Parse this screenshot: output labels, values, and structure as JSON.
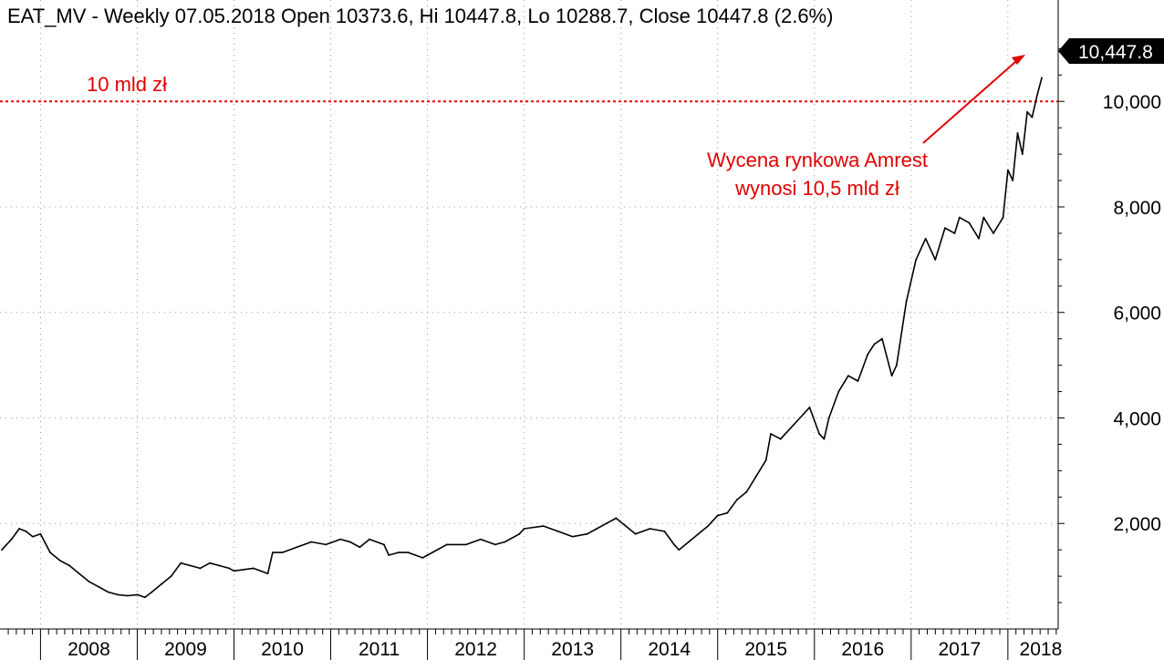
{
  "chart_data": {
    "type": "line",
    "title": "EAT_MV - Weekly 07.05.2018 Open 10373.6, Hi 10447.8, Lo 10288.7, Close 10447.8 (2.6%)",
    "xlabel": "",
    "ylabel": "",
    "x_tick_labels": [
      "2008",
      "2009",
      "2010",
      "2011",
      "2012",
      "2013",
      "2014",
      "2015",
      "2016",
      "2017",
      "2018"
    ],
    "y_tick_labels": [
      "2,000",
      "4,000",
      "6,000",
      "8,000",
      "10,000"
    ],
    "y_ticks": [
      2000,
      4000,
      6000,
      8000,
      10000
    ],
    "ylim": [
      0,
      11300
    ],
    "xlim": [
      2007.6,
      2018.52
    ],
    "grid": true,
    "last_value_label": "10,447.8",
    "reference_line": {
      "value": 10000,
      "label": "10 mld zł",
      "color": "#e00000"
    },
    "annotation": {
      "lines": [
        "Wycena rynkowa Amrest",
        "wynosi 10,5 mld zł"
      ],
      "color": "#e00000"
    },
    "series": [
      {
        "x": [
          2007.6,
          2007.7,
          2007.78,
          2007.85,
          2007.92,
          2008.0,
          2008.1,
          2008.2,
          2008.3,
          2008.4,
          2008.5,
          2008.6,
          2008.7,
          2008.8,
          2008.9,
          2009.0,
          2009.08,
          2009.15,
          2009.25,
          2009.35,
          2009.45,
          2009.55,
          2009.65,
          2009.75,
          2009.85,
          2009.95,
          2010.0,
          2010.2,
          2010.35,
          2010.4,
          2010.5,
          2010.65,
          2010.8,
          2010.95,
          2011.1,
          2011.2,
          2011.3,
          2011.4,
          2011.55,
          2011.6,
          2011.7,
          2011.8,
          2011.95,
          2012.0,
          2012.2,
          2012.4,
          2012.55,
          2012.7,
          2012.8,
          2012.95,
          2013.0,
          2013.2,
          2013.35,
          2013.5,
          2013.65,
          2013.75,
          2013.85,
          2013.95,
          2014.05,
          2014.15,
          2014.3,
          2014.45,
          2014.55,
          2014.6,
          2014.7,
          2014.8,
          2014.9,
          2015.0,
          2015.1,
          2015.2,
          2015.3,
          2015.4,
          2015.5,
          2015.55,
          2015.65,
          2015.75,
          2015.85,
          2015.95,
          2016.05,
          2016.1,
          2016.15,
          2016.25,
          2016.35,
          2016.45,
          2016.55,
          2016.62,
          2016.7,
          2016.8,
          2016.85,
          2016.95,
          2017.05,
          2017.15,
          2017.25,
          2017.35,
          2017.45,
          2017.5,
          2017.6,
          2017.7,
          2017.75,
          2017.85,
          2017.95,
          2018.0,
          2018.05,
          2018.1,
          2018.15,
          2018.2,
          2018.25,
          2018.3,
          2018.35
        ],
        "values": [
          1500,
          1700,
          1900,
          1850,
          1750,
          1800,
          1450,
          1300,
          1200,
          1050,
          900,
          800,
          700,
          650,
          630,
          650,
          600,
          700,
          850,
          1000,
          1250,
          1200,
          1150,
          1250,
          1200,
          1150,
          1100,
          1150,
          1050,
          1450,
          1450,
          1550,
          1650,
          1600,
          1700,
          1650,
          1550,
          1700,
          1600,
          1400,
          1450,
          1450,
          1350,
          1400,
          1600,
          1600,
          1700,
          1600,
          1650,
          1800,
          1900,
          1950,
          1850,
          1750,
          1800,
          1900,
          2000,
          2100,
          1950,
          1800,
          1900,
          1850,
          1600,
          1500,
          1650,
          1800,
          1950,
          2150,
          2200,
          2450,
          2600,
          2900,
          3200,
          3700,
          3600,
          3800,
          4000,
          4200,
          3700,
          3600,
          4000,
          4500,
          4800,
          4700,
          5200,
          5400,
          5500,
          4800,
          5000,
          6200,
          7000,
          7400,
          7000,
          7600,
          7500,
          7800,
          7700,
          7400,
          7800,
          7500,
          7800,
          8700,
          8500,
          9400,
          9000,
          9800,
          9700,
          10100,
          10447.8
        ]
      }
    ]
  }
}
